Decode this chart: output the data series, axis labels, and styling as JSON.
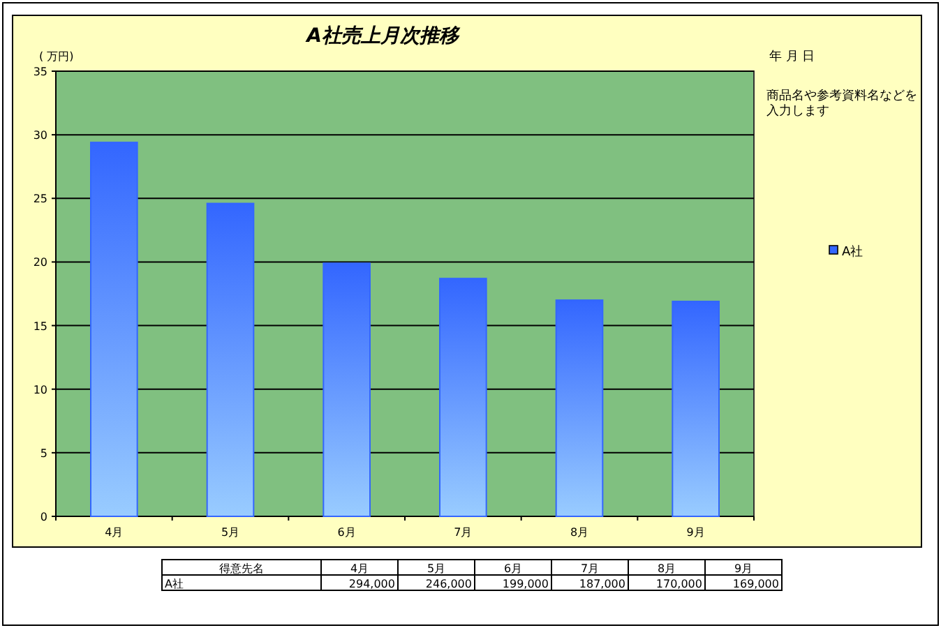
{
  "chart_data": {
    "type": "bar",
    "title": "A社売上月次推移",
    "ylabel": "( 万円)",
    "categories": [
      "4月",
      "5月",
      "6月",
      "7月",
      "8月",
      "9月"
    ],
    "series": [
      {
        "name": "A社",
        "color": "#3366ff",
        "values": [
          29.4,
          24.6,
          19.9,
          18.7,
          17.0,
          16.9
        ]
      }
    ],
    "ylim": [
      0,
      35
    ],
    "yticks": [
      0,
      5,
      10,
      15,
      20,
      25,
      30,
      35
    ],
    "grid": "y",
    "legend": "right",
    "annotations": [
      "年 月 日",
      "商品名や参考資料名などを入力します",
      "得意先名",
      "294,000",
      "246,000",
      "199,000",
      "187,000",
      "170,000",
      "169,000"
    ]
  }
}
